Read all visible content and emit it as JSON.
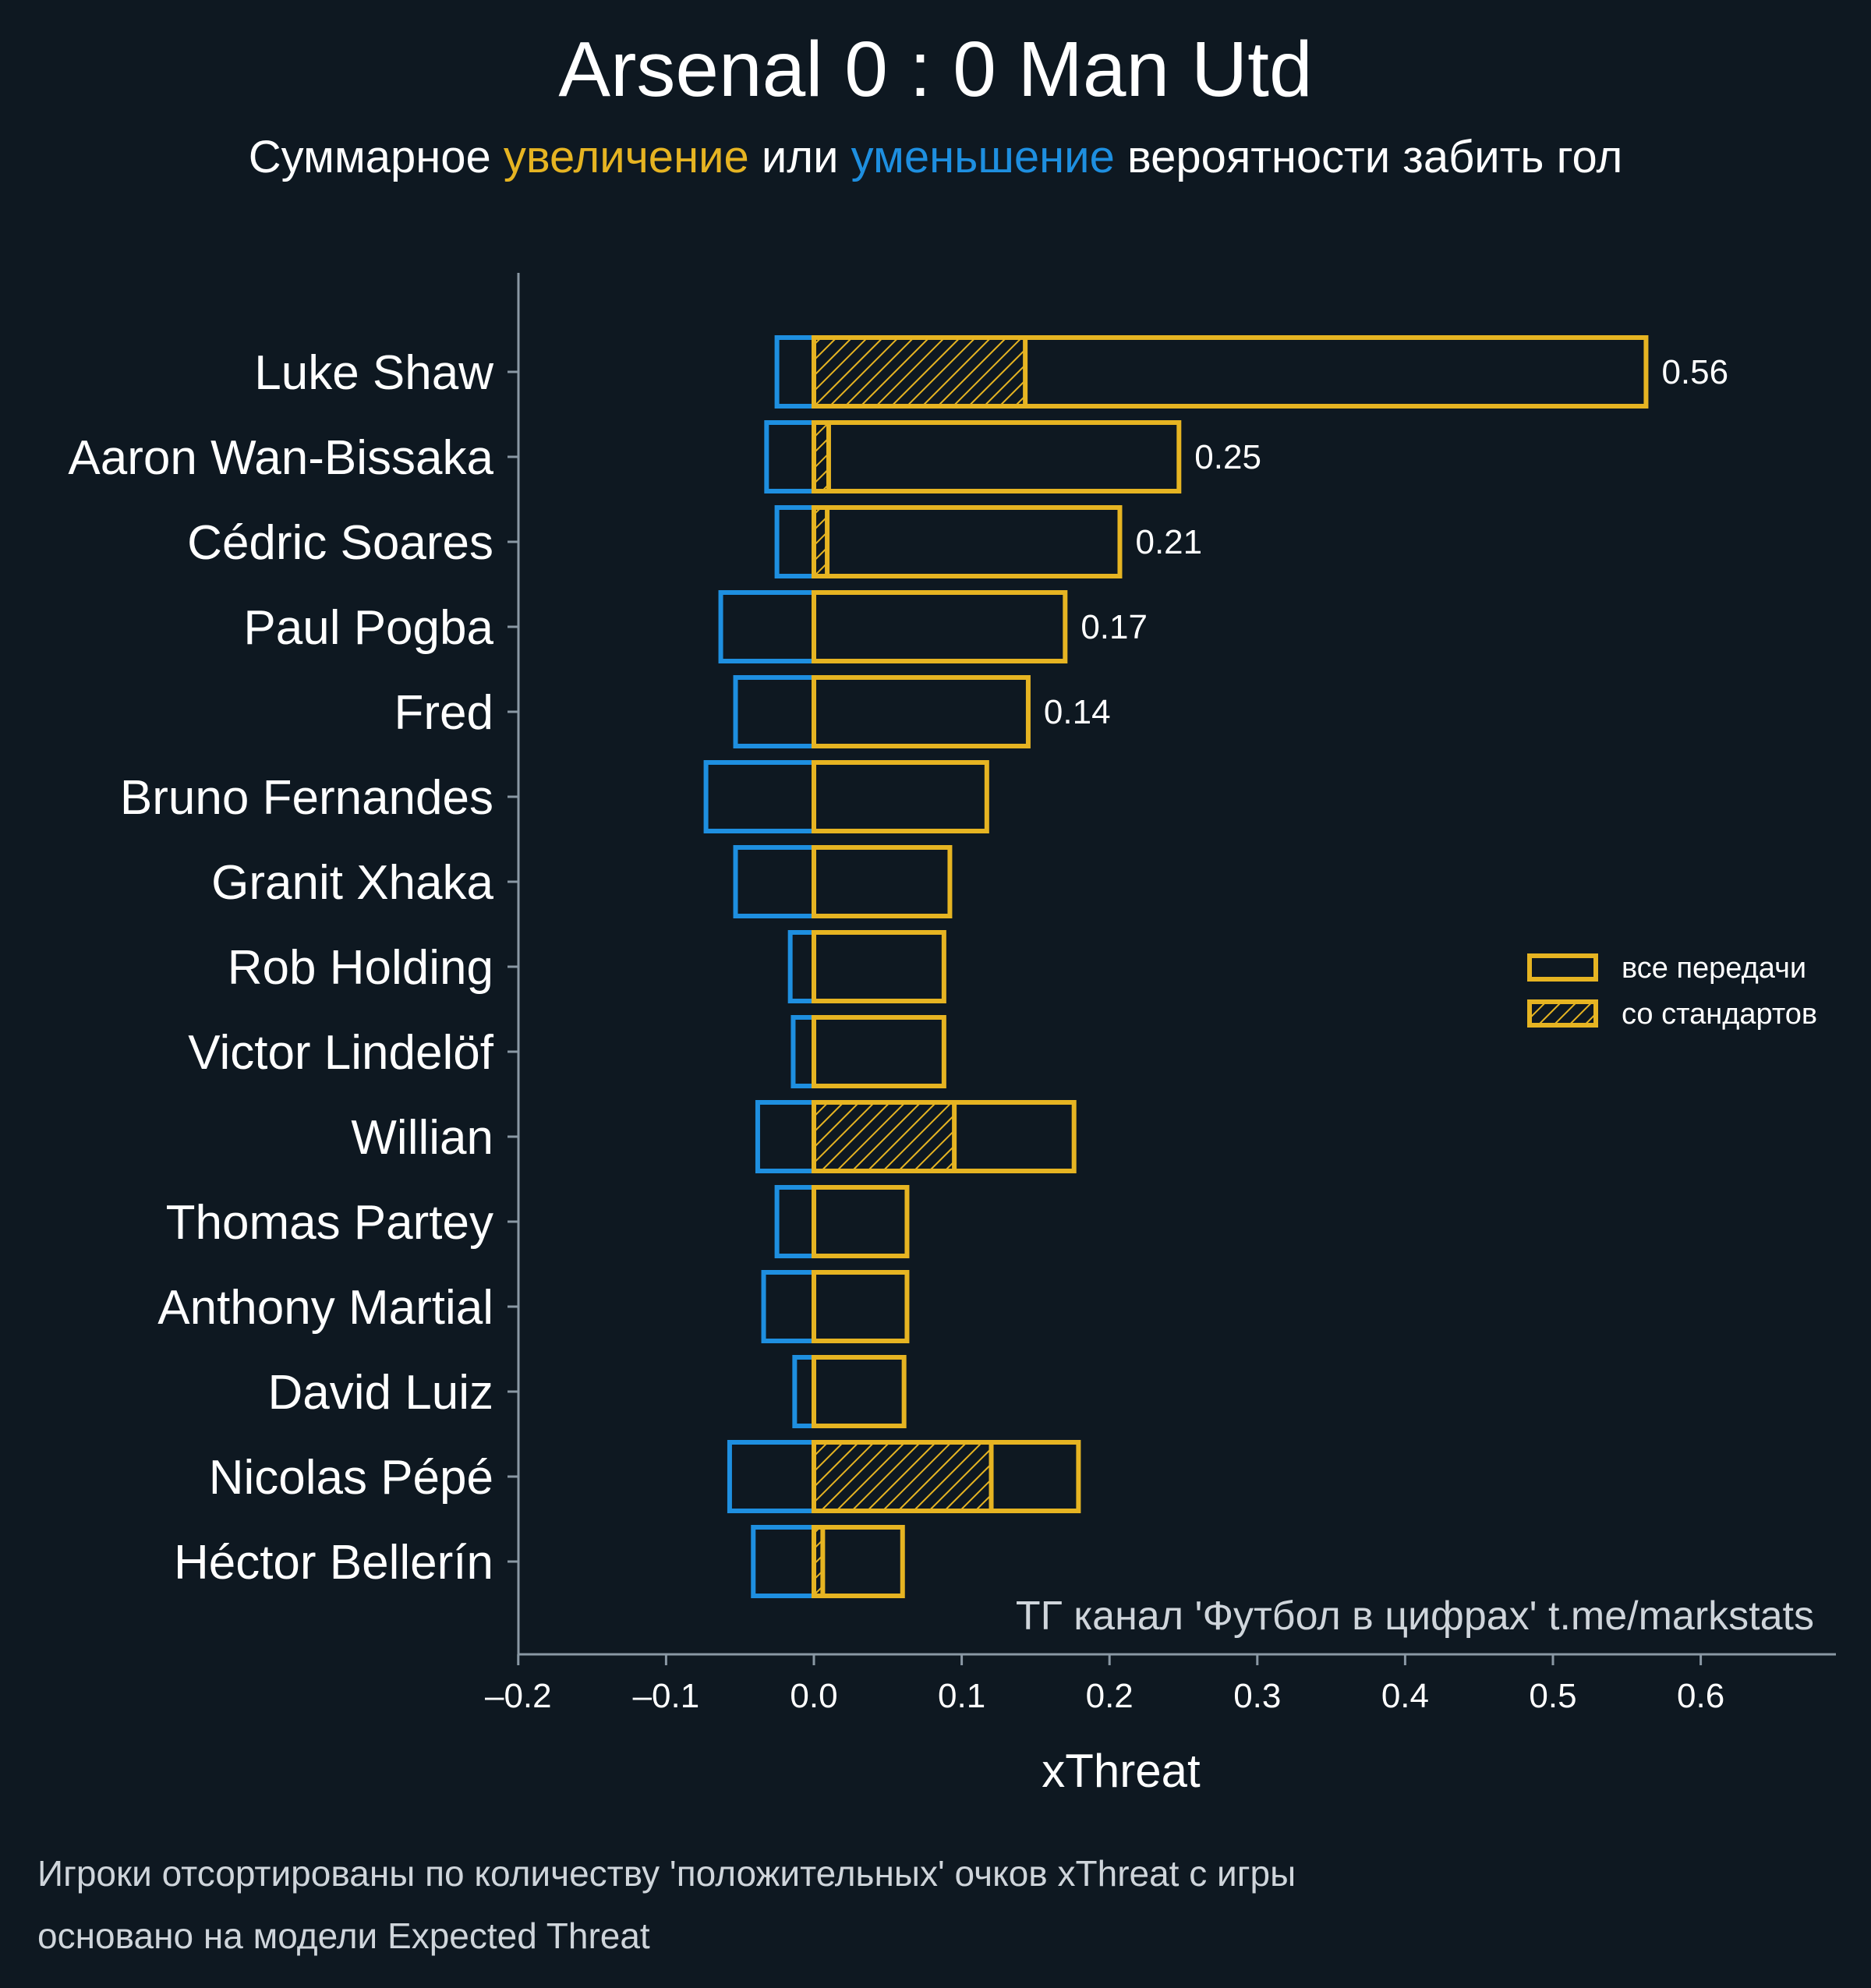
{
  "title": "Arsenal 0 : 0 Man Utd",
  "subtitle": {
    "part1": "Суммарное ",
    "positive": "увеличение",
    "part2": " или ",
    "negative": "уменьшение",
    "part3": " вероятности забить гол"
  },
  "colors": {
    "background": "#0e1821",
    "positive": "#e6b422",
    "negative": "#1e8fe0",
    "axis": "#8a98a4"
  },
  "chart_data": {
    "type": "bar",
    "orientation": "horizontal",
    "xlabel": "xThreat",
    "xlim": [
      -0.2,
      0.69
    ],
    "xticks": [
      -0.2,
      -0.1,
      0.0,
      0.1,
      0.2,
      0.3,
      0.4,
      0.5,
      0.6
    ],
    "xtick_labels": [
      "–0.2",
      "–0.1",
      "0.0",
      "0.1",
      "0.2",
      "0.3",
      "0.4",
      "0.5",
      "0.6"
    ],
    "legend_position": "right",
    "legend": [
      {
        "label": "все передачи",
        "style": "outline"
      },
      {
        "label": "со стандартов",
        "style": "hatched"
      }
    ],
    "players": [
      {
        "name": "Luke Shaw",
        "negative": -0.025,
        "positive": 0.563,
        "set_piece": 0.143,
        "label": "0.56"
      },
      {
        "name": "Aaron Wan-Bissaka",
        "negative": -0.032,
        "positive": 0.247,
        "set_piece": 0.01,
        "label": "0.25"
      },
      {
        "name": "Cédric Soares",
        "negative": -0.025,
        "positive": 0.207,
        "set_piece": 0.009,
        "label": "0.21"
      },
      {
        "name": "Paul Pogba",
        "negative": -0.063,
        "positive": 0.17,
        "set_piece": 0,
        "label": "0.17"
      },
      {
        "name": "Fred",
        "negative": -0.053,
        "positive": 0.145,
        "set_piece": 0,
        "label": "0.14"
      },
      {
        "name": "Bruno Fernandes",
        "negative": -0.073,
        "positive": 0.117,
        "set_piece": 0,
        "label": ""
      },
      {
        "name": "Granit Xhaka",
        "negative": -0.053,
        "positive": 0.092,
        "set_piece": 0,
        "label": ""
      },
      {
        "name": "Rob Holding",
        "negative": -0.016,
        "positive": 0.088,
        "set_piece": 0,
        "label": ""
      },
      {
        "name": "Victor Lindelöf",
        "negative": -0.014,
        "positive": 0.088,
        "set_piece": 0,
        "label": ""
      },
      {
        "name": "Willian",
        "negative": -0.038,
        "positive": 0.176,
        "set_piece": 0.095,
        "label": ""
      },
      {
        "name": "Thomas Partey",
        "negative": -0.025,
        "positive": 0.063,
        "set_piece": 0,
        "label": ""
      },
      {
        "name": "Anthony Martial",
        "negative": -0.034,
        "positive": 0.063,
        "set_piece": 0,
        "label": ""
      },
      {
        "name": "David Luiz",
        "negative": -0.013,
        "positive": 0.061,
        "set_piece": 0,
        "label": ""
      },
      {
        "name": "Nicolas Pépé",
        "negative": -0.057,
        "positive": 0.179,
        "set_piece": 0.12,
        "label": ""
      },
      {
        "name": "Héctor Bellerín",
        "negative": -0.041,
        "positive": 0.06,
        "set_piece": 0.006,
        "label": ""
      }
    ]
  },
  "watermark": "ТГ канал 'Футбол в цифрах'  t.me/markstats",
  "footnotes": [
    "Игроки отсортированы по количеству 'положительных' очков xThreat с игры",
    "основано на модели Expected Threat"
  ]
}
